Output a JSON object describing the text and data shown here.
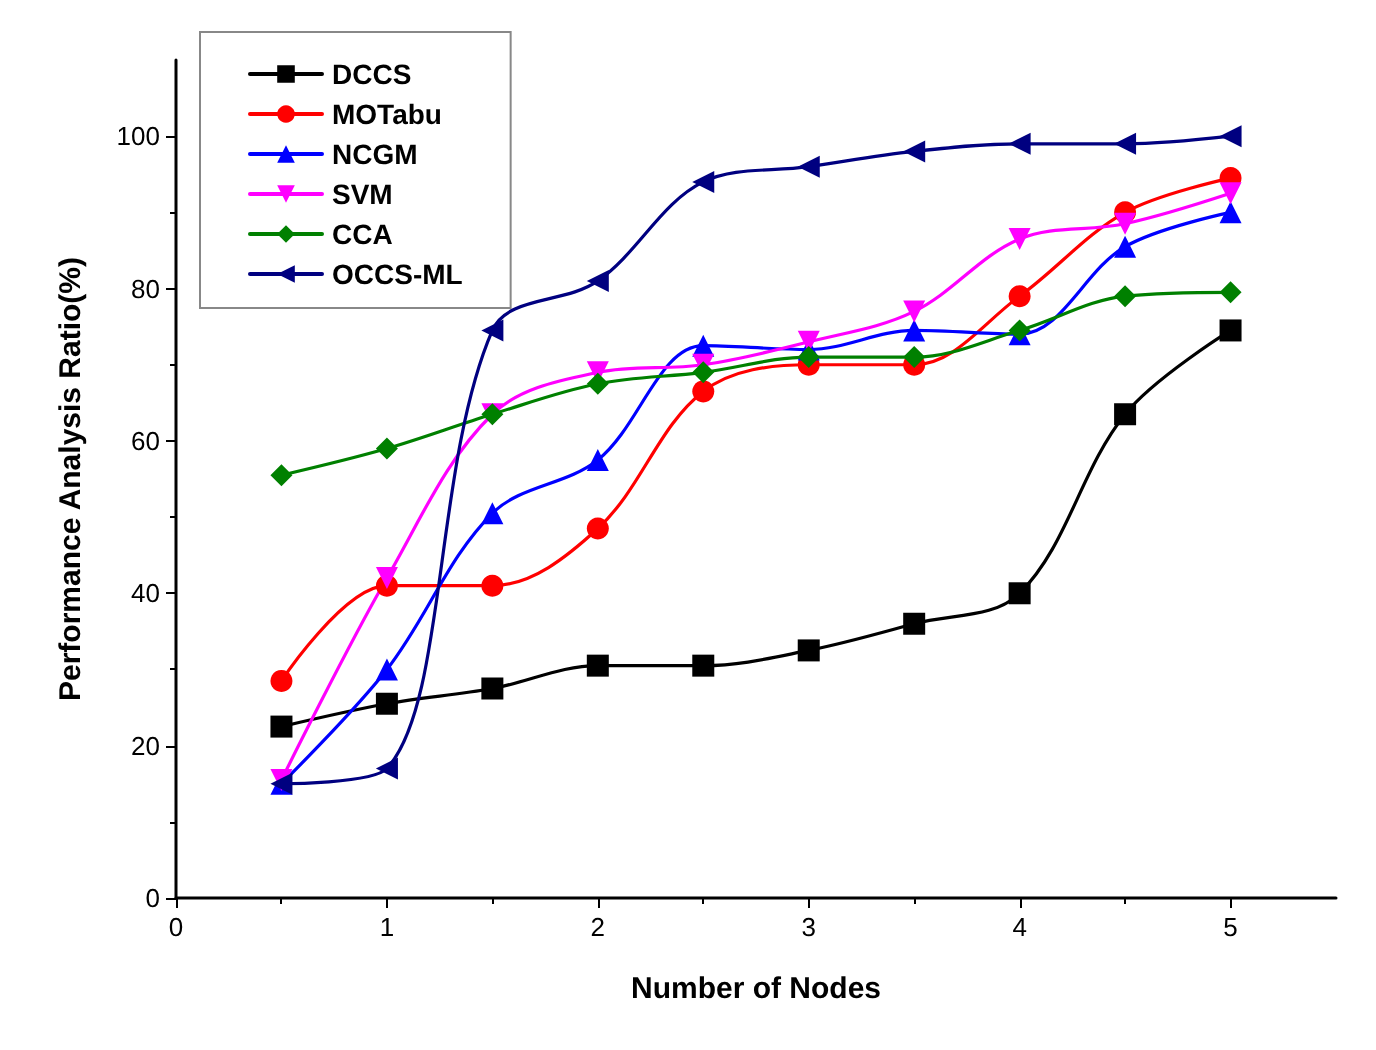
{
  "chart_data": {
    "type": "line",
    "xlabel": "Number of Nodes",
    "ylabel": "Performance Analysis Ratio(%)",
    "x": [
      0.5,
      1,
      1.5,
      2,
      2.5,
      3,
      3.5,
      4,
      4.5,
      5
    ],
    "xlim": [
      0,
      5.5
    ],
    "xticks": [
      0,
      1,
      2,
      3,
      4,
      5
    ],
    "ylim": [
      0,
      110
    ],
    "yticks": [
      0,
      20,
      40,
      60,
      80,
      100
    ],
    "grid": false,
    "legend": "top left",
    "line_style": "solid",
    "series": [
      {
        "name": "DCCS",
        "color": "#000000",
        "marker": "square",
        "values": [
          22.5,
          25.5,
          27.5,
          30.5,
          30.5,
          32.5,
          36,
          40,
          63.5,
          74.5
        ]
      },
      {
        "name": "MOTabu",
        "color": "#ff0000",
        "marker": "circle",
        "values": [
          28.5,
          41,
          41,
          48.5,
          66.5,
          70,
          70,
          79,
          90,
          94.5
        ]
      },
      {
        "name": "NCGM",
        "color": "#0000ff",
        "marker": "triangle",
        "values": [
          15,
          30,
          50.5,
          57.5,
          72.5,
          72,
          74.5,
          74,
          85.5,
          90
        ]
      },
      {
        "name": "SVM",
        "color": "#ff00ff",
        "marker": "triangle-down",
        "values": [
          15.5,
          42,
          63.5,
          69,
          70,
          73,
          77,
          86.5,
          88.5,
          92.5
        ]
      },
      {
        "name": "CCA",
        "color": "#008000",
        "marker": "diamond",
        "values": [
          55.5,
          59,
          63.5,
          67.5,
          69,
          71,
          71,
          74.5,
          79,
          79.5
        ]
      },
      {
        "name": "OCCS-ML",
        "color": "#000080",
        "marker": "triangle-left",
        "values": [
          15,
          17,
          74.5,
          81,
          94,
          96,
          98,
          99,
          99,
          100
        ]
      }
    ]
  }
}
